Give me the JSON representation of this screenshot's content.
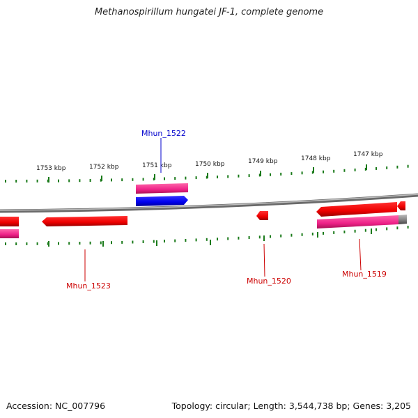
{
  "title": "Methanospirillum hungatei JF-1, complete genome",
  "footer": {
    "accession": "Accession: NC_007796",
    "summary": "Topology: circular; Length: 3,544,738 bp; Genes: 3,205"
  },
  "ticks": [
    "1753 kbp",
    "1752 kbp",
    "1751 kbp",
    "1750 kbp",
    "1749 kbp",
    "1748 kbp",
    "1747 kbp"
  ],
  "genes": {
    "g1522": "Mhun_1522",
    "g1523": "Mhun_1523",
    "g1520": "Mhun_1520",
    "g1519": "Mhun_1519"
  },
  "colors": {
    "backbone": "#808080",
    "forward_cds": "#ff0000",
    "blue_cds": "#0000ff",
    "magenta_feature": "#ff3399",
    "ticks": "#1a7a1a",
    "label_red": "#cc0000",
    "label_blue": "#0000cc"
  }
}
